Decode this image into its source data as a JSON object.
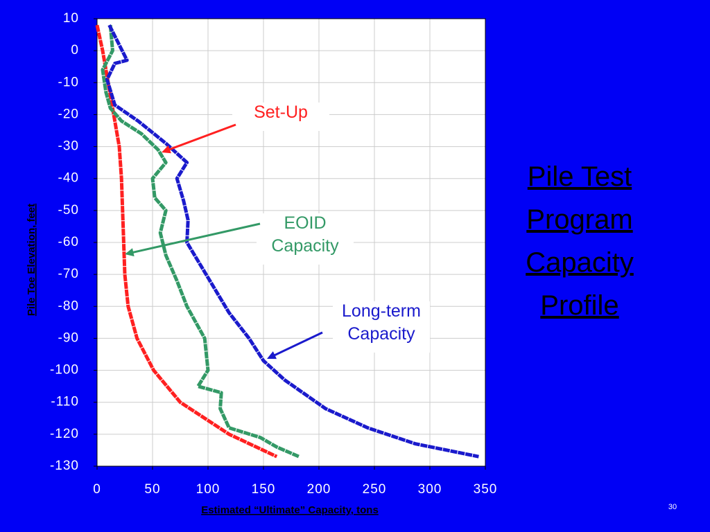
{
  "chart_data": {
    "type": "line",
    "title": [
      "Pile Test",
      "Program",
      "Capacity",
      "Profile"
    ],
    "xlabel": "Estimated “Ultimate” Capacity, tons",
    "ylabel": "Pile Toe Elevation, feet",
    "page_number": "30",
    "xlim": [
      0,
      350
    ],
    "xticks": [
      0,
      50,
      100,
      150,
      200,
      250,
      300,
      350
    ],
    "ylim": [
      -130,
      10
    ],
    "yticks": [
      10,
      0,
      -10,
      -20,
      -30,
      -40,
      -50,
      -60,
      -70,
      -80,
      -90,
      -100,
      -110,
      -120,
      -130
    ],
    "grid": true,
    "series": [
      {
        "name": [
          "Set-Up"
        ],
        "color": "#ff2020",
        "x": [
          0,
          5,
          10,
          15,
          20,
          22,
          23,
          24,
          25,
          28,
          36,
          51,
          75,
          119,
          162
        ],
        "values": [
          8,
          0,
          -10,
          -20,
          -30,
          -40,
          -50,
          -60,
          -70,
          -80,
          -90,
          -100,
          -110,
          -120,
          -127
        ]
      },
      {
        "name": [
          "EOID",
          "Capacity"
        ],
        "color": "#339966",
        "x": [
          12,
          14,
          5,
          8,
          12,
          22,
          40,
          55,
          62,
          50,
          52,
          62,
          57,
          62,
          72,
          81,
          97,
          100,
          91,
          112,
          111,
          119,
          147,
          162,
          182
        ],
        "values": [
          8,
          0,
          -6,
          -13,
          -18,
          -22,
          -26,
          -31,
          -35,
          -40,
          -46,
          -50,
          -57,
          -64,
          -72,
          -80,
          -90,
          -100,
          -105,
          -107,
          -112,
          -118,
          -121,
          -124,
          -127
        ]
      },
      {
        "name": [
          "Long-term",
          "Capacity"
        ],
        "color": "#1a1acc",
        "x": [
          11,
          27,
          16,
          9,
          16,
          37,
          62,
          81,
          72,
          78,
          82,
          81,
          100,
          119,
          137,
          150,
          169,
          206,
          244,
          287,
          344
        ],
        "values": [
          8,
          -3,
          -4,
          -9,
          -17,
          -22,
          -29,
          -35,
          -40,
          -47,
          -53,
          -60,
          -71,
          -82,
          -90,
          -97,
          -103,
          -112,
          -118,
          -123,
          -127
        ]
      }
    ]
  }
}
